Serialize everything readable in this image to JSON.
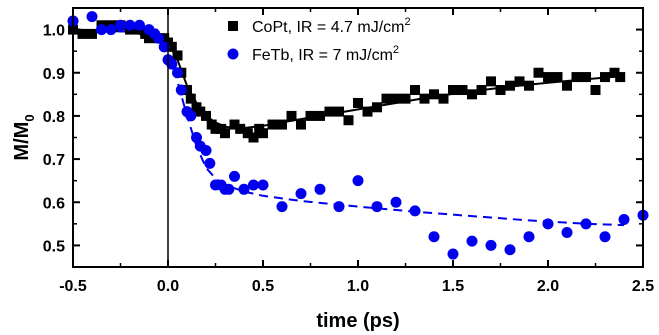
{
  "chart_data": {
    "type": "scatter",
    "xlabel": "time (ps)",
    "ylabel_main": "M/M",
    "ylabel_sub": "0",
    "xlim": [
      -0.5,
      2.5
    ],
    "ylim": [
      0.45,
      1.05
    ],
    "x_ticks": [
      "-0.5",
      "0.0",
      "0.5",
      "1.0",
      "1.5",
      "2.0",
      "2.5"
    ],
    "y_ticks": [
      "0.5",
      "0.6",
      "0.7",
      "0.8",
      "0.9",
      "1.0"
    ],
    "vertical_line_x": 0.0,
    "legend_position": "top-center",
    "series": [
      {
        "name": "CoPt, IR = 4.7 mJ/cm",
        "name_sup": "2",
        "marker": "square",
        "color": "#000000",
        "points": [
          [
            -0.5,
            1.0
          ],
          [
            -0.45,
            0.99
          ],
          [
            -0.4,
            0.99
          ],
          [
            -0.35,
            1.01
          ],
          [
            -0.3,
            1.01
          ],
          [
            -0.25,
            1.01
          ],
          [
            -0.2,
            1.0
          ],
          [
            -0.15,
            1.0
          ],
          [
            -0.12,
            0.99
          ],
          [
            -0.1,
            0.98
          ],
          [
            -0.08,
            0.99
          ],
          [
            -0.05,
            0.98
          ],
          [
            -0.02,
            0.98
          ],
          [
            0.0,
            0.97
          ],
          [
            0.02,
            0.96
          ],
          [
            0.05,
            0.94
          ],
          [
            0.07,
            0.9
          ],
          [
            0.1,
            0.86
          ],
          [
            0.12,
            0.84
          ],
          [
            0.15,
            0.82
          ],
          [
            0.17,
            0.81
          ],
          [
            0.2,
            0.8
          ],
          [
            0.23,
            0.78
          ],
          [
            0.25,
            0.77
          ],
          [
            0.28,
            0.77
          ],
          [
            0.3,
            0.76
          ],
          [
            0.35,
            0.78
          ],
          [
            0.38,
            0.77
          ],
          [
            0.42,
            0.76
          ],
          [
            0.45,
            0.75
          ],
          [
            0.48,
            0.77
          ],
          [
            0.5,
            0.76
          ],
          [
            0.55,
            0.78
          ],
          [
            0.6,
            0.78
          ],
          [
            0.65,
            0.8
          ],
          [
            0.7,
            0.78
          ],
          [
            0.75,
            0.8
          ],
          [
            0.8,
            0.8
          ],
          [
            0.85,
            0.81
          ],
          [
            0.9,
            0.81
          ],
          [
            0.95,
            0.79
          ],
          [
            1.0,
            0.83
          ],
          [
            1.05,
            0.81
          ],
          [
            1.1,
            0.82
          ],
          [
            1.15,
            0.84
          ],
          [
            1.2,
            0.84
          ],
          [
            1.25,
            0.84
          ],
          [
            1.3,
            0.86
          ],
          [
            1.35,
            0.84
          ],
          [
            1.4,
            0.85
          ],
          [
            1.45,
            0.84
          ],
          [
            1.5,
            0.86
          ],
          [
            1.55,
            0.86
          ],
          [
            1.6,
            0.85
          ],
          [
            1.65,
            0.86
          ],
          [
            1.7,
            0.88
          ],
          [
            1.75,
            0.86
          ],
          [
            1.8,
            0.87
          ],
          [
            1.85,
            0.88
          ],
          [
            1.9,
            0.87
          ],
          [
            1.95,
            0.9
          ],
          [
            2.0,
            0.89
          ],
          [
            2.05,
            0.89
          ],
          [
            2.1,
            0.87
          ],
          [
            2.15,
            0.89
          ],
          [
            2.2,
            0.89
          ],
          [
            2.25,
            0.86
          ],
          [
            2.3,
            0.89
          ],
          [
            2.35,
            0.9
          ],
          [
            2.38,
            0.89
          ]
        ],
        "fit": [
          [
            -0.5,
            1.0
          ],
          [
            -0.2,
            0.995
          ],
          [
            -0.1,
            0.99
          ],
          [
            0.0,
            0.97
          ],
          [
            0.05,
            0.93
          ],
          [
            0.1,
            0.87
          ],
          [
            0.15,
            0.83
          ],
          [
            0.2,
            0.8
          ],
          [
            0.25,
            0.785
          ],
          [
            0.3,
            0.775
          ],
          [
            0.35,
            0.772
          ],
          [
            0.4,
            0.772
          ],
          [
            0.5,
            0.777
          ],
          [
            0.6,
            0.785
          ],
          [
            0.8,
            0.8
          ],
          [
            1.0,
            0.815
          ],
          [
            1.2,
            0.83
          ],
          [
            1.4,
            0.845
          ],
          [
            1.6,
            0.857
          ],
          [
            1.8,
            0.868
          ],
          [
            2.0,
            0.877
          ],
          [
            2.2,
            0.885
          ],
          [
            2.38,
            0.892
          ]
        ],
        "fit_style": "solid"
      },
      {
        "name": "FeTb, IR = 7 mJ/cm",
        "name_sup": "2",
        "marker": "circle",
        "color": "#0000ee",
        "points": [
          [
            -0.5,
            1.02
          ],
          [
            -0.4,
            1.03
          ],
          [
            -0.35,
            1.0
          ],
          [
            -0.3,
            1.0
          ],
          [
            -0.25,
            1.01
          ],
          [
            -0.2,
            1.01
          ],
          [
            -0.15,
            1.01
          ],
          [
            -0.1,
            1.0
          ],
          [
            -0.07,
            0.99
          ],
          [
            -0.05,
            0.98
          ],
          [
            -0.02,
            0.96
          ],
          [
            0.0,
            0.93
          ],
          [
            0.02,
            0.92
          ],
          [
            0.05,
            0.9
          ],
          [
            0.07,
            0.86
          ],
          [
            0.1,
            0.81
          ],
          [
            0.12,
            0.8
          ],
          [
            0.15,
            0.75
          ],
          [
            0.17,
            0.73
          ],
          [
            0.2,
            0.72
          ],
          [
            0.22,
            0.69
          ],
          [
            0.25,
            0.64
          ],
          [
            0.28,
            0.64
          ],
          [
            0.3,
            0.63
          ],
          [
            0.32,
            0.63
          ],
          [
            0.35,
            0.66
          ],
          [
            0.4,
            0.63
          ],
          [
            0.45,
            0.64
          ],
          [
            0.5,
            0.64
          ],
          [
            0.6,
            0.59
          ],
          [
            0.7,
            0.62
          ],
          [
            0.8,
            0.63
          ],
          [
            0.9,
            0.59
          ],
          [
            1.0,
            0.65
          ],
          [
            1.1,
            0.59
          ],
          [
            1.2,
            0.6
          ],
          [
            1.3,
            0.58
          ],
          [
            1.4,
            0.52
          ],
          [
            1.5,
            0.48
          ],
          [
            1.6,
            0.51
          ],
          [
            1.7,
            0.5
          ],
          [
            1.8,
            0.49
          ],
          [
            1.9,
            0.52
          ],
          [
            2.0,
            0.55
          ],
          [
            2.1,
            0.53
          ],
          [
            2.2,
            0.55
          ],
          [
            2.3,
            0.52
          ],
          [
            2.4,
            0.56
          ],
          [
            2.5,
            0.57
          ]
        ],
        "fit": [
          [
            -0.5,
            1.0
          ],
          [
            -0.2,
            0.995
          ],
          [
            -0.1,
            0.985
          ],
          [
            0.0,
            0.95
          ],
          [
            0.05,
            0.88
          ],
          [
            0.1,
            0.8
          ],
          [
            0.15,
            0.73
          ],
          [
            0.2,
            0.68
          ],
          [
            0.25,
            0.655
          ],
          [
            0.3,
            0.64
          ],
          [
            0.4,
            0.625
          ],
          [
            0.5,
            0.615
          ],
          [
            0.7,
            0.603
          ],
          [
            1.0,
            0.59
          ],
          [
            1.3,
            0.578
          ],
          [
            1.6,
            0.568
          ],
          [
            1.9,
            0.558
          ],
          [
            2.2,
            0.55
          ],
          [
            2.4,
            0.547
          ]
        ],
        "fit_style": "dashed"
      }
    ]
  }
}
